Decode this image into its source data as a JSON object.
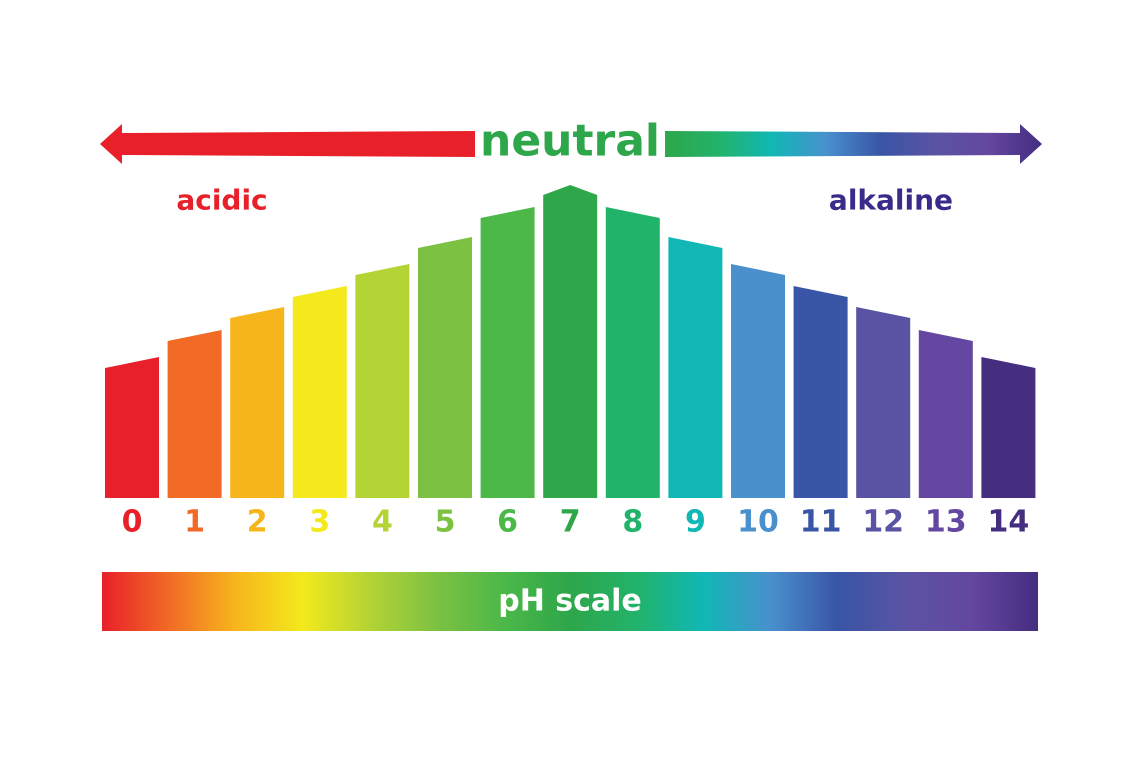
{
  "neutral_label": "neutral",
  "acidic_label": "acidic",
  "alkaline_label": "alkaline",
  "scale_label": "pH scale",
  "levels": [
    {
      "label": "0",
      "color": "#e8202a"
    },
    {
      "label": "1",
      "color": "#f16a26"
    },
    {
      "label": "2",
      "color": "#f7b51c"
    },
    {
      "label": "3",
      "color": "#f3e91c"
    },
    {
      "label": "4",
      "color": "#b4d335"
    },
    {
      "label": "5",
      "color": "#7dc142"
    },
    {
      "label": "6",
      "color": "#4cb848"
    },
    {
      "label": "7",
      "color": "#2ea64a"
    },
    {
      "label": "8",
      "color": "#22b36b"
    },
    {
      "label": "9",
      "color": "#10b7b5"
    },
    {
      "label": "10",
      "color": "#4990cd"
    },
    {
      "label": "11",
      "color": "#3955a6"
    },
    {
      "label": "12",
      "color": "#5a53a3"
    },
    {
      "label": "13",
      "color": "#6447a0"
    },
    {
      "label": "14",
      "color": "#452d80"
    }
  ]
}
